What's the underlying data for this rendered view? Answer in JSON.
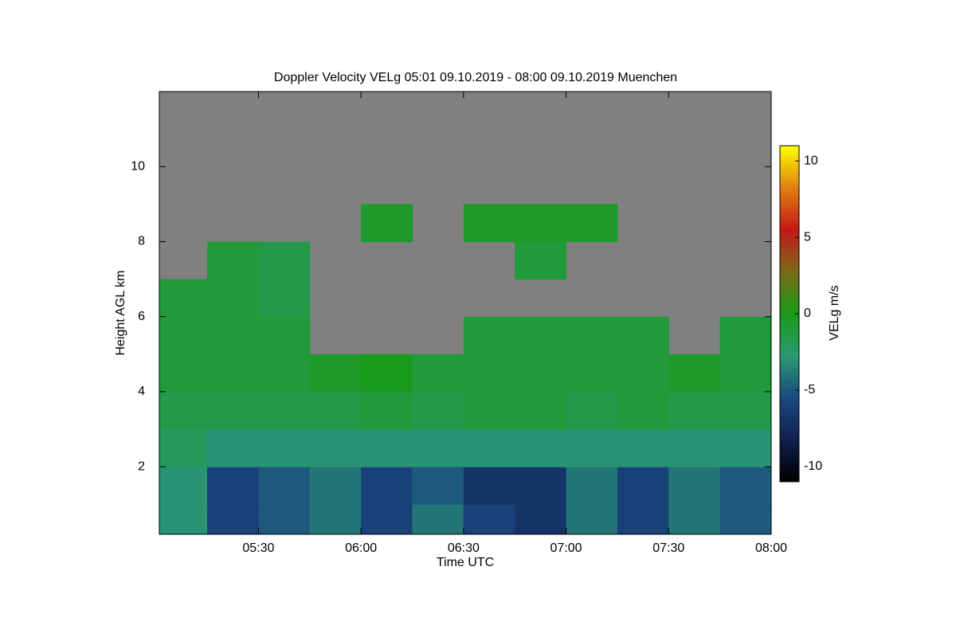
{
  "chart_data": {
    "type": "heatmap",
    "title": "Doppler Velocity VELg   05:01 09.10.2019 - 08:00 09.10.2019 Muenchen",
    "x_label": "Time UTC",
    "y_label": "Height AGL km",
    "colorbar_label": "VELg m/s",
    "xlim": [
      301,
      480
    ],
    "xticks": [
      {
        "value": 330,
        "label": "05:30"
      },
      {
        "value": 360,
        "label": "06:00"
      },
      {
        "value": 390,
        "label": "06:30"
      },
      {
        "value": 420,
        "label": "07:00"
      },
      {
        "value": 450,
        "label": "07:30"
      },
      {
        "value": 480,
        "label": "08:00"
      }
    ],
    "ylim": [
      0.2,
      12
    ],
    "yticks": [
      2,
      4,
      6,
      8,
      10
    ],
    "x_edges": [
      301,
      315,
      330,
      345,
      360,
      375,
      390,
      405,
      420,
      435,
      450,
      465,
      480
    ],
    "y_edges": [
      0.2,
      1,
      2,
      3,
      4,
      5,
      6,
      7,
      8,
      9,
      10,
      11,
      12
    ],
    "z": [
      [
        -3,
        -6,
        -5,
        -4,
        -6,
        -4,
        -6,
        -7,
        -4,
        -6,
        -4,
        -5
      ],
      [
        -3,
        -6,
        -5,
        -4,
        -6,
        -5,
        -7,
        -7,
        -4,
        -6,
        -4,
        -5
      ],
      [
        -2,
        -3,
        -3,
        -3,
        -3,
        -3,
        -3,
        -3,
        -3,
        -3,
        -3,
        -3
      ],
      [
        -1.5,
        -1.5,
        -1.5,
        -1.5,
        -1,
        -1.5,
        -1,
        -1,
        -1.5,
        -1,
        -1.5,
        -1.5
      ],
      [
        -1,
        -1,
        -1,
        -0.5,
        0,
        -1,
        -1,
        -1,
        -1,
        -1,
        -0.5,
        -1
      ],
      [
        -1,
        -1,
        -1,
        null,
        null,
        null,
        -1,
        -1,
        -1,
        -1,
        null,
        -1
      ],
      [
        -1,
        -1,
        -1.5,
        null,
        null,
        null,
        null,
        null,
        null,
        null,
        null,
        null
      ],
      [
        null,
        -1,
        -1.5,
        null,
        null,
        null,
        null,
        -1,
        null,
        null,
        null,
        null
      ],
      [
        null,
        null,
        null,
        null,
        -0.5,
        null,
        -0.5,
        -0.5,
        -0.5,
        null,
        null,
        null
      ],
      [
        null,
        null,
        null,
        null,
        null,
        null,
        null,
        null,
        null,
        null,
        null,
        null
      ],
      [
        null,
        null,
        null,
        null,
        null,
        null,
        null,
        null,
        null,
        null,
        null,
        null
      ],
      [
        null,
        null,
        null,
        null,
        null,
        null,
        null,
        null,
        null,
        null,
        null,
        null
      ]
    ],
    "clim": [
      -11,
      11
    ],
    "cticks": [
      {
        "value": -10,
        "label": "-10"
      },
      -5,
      0,
      5,
      10
    ],
    "colormap": [
      "#000000",
      "#10204e",
      "#1a4a80",
      "#2a9a72",
      "#1a9a1a",
      "#7a6a1a",
      "#c41818",
      "#e08010",
      "#ffff00"
    ],
    "missing_color": "#808080"
  }
}
